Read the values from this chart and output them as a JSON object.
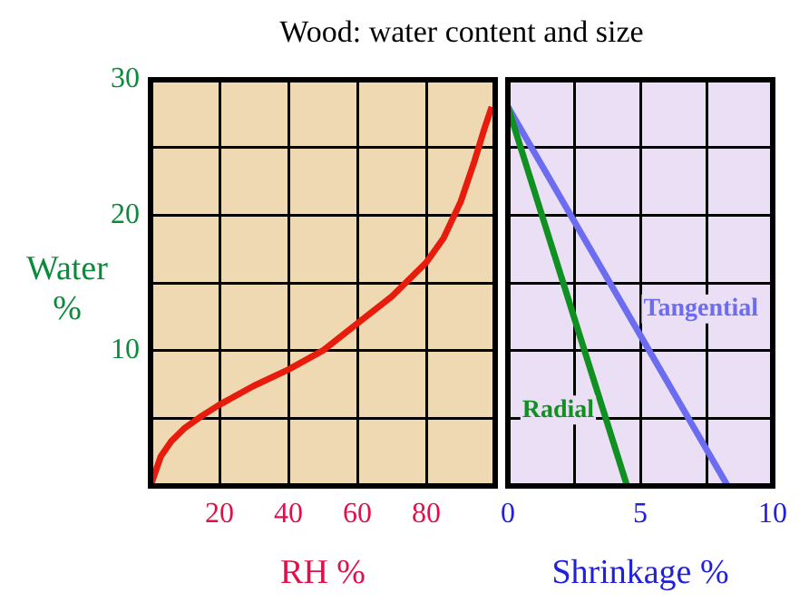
{
  "chart_data": [
    {
      "type": "line",
      "title": "Wood: water content and size",
      "xlabel": "RH %",
      "ylabel": "Water %",
      "xlim": [
        0,
        100
      ],
      "xticks": [
        20,
        40,
        60,
        80
      ],
      "ylim": [
        0,
        30
      ],
      "yticks": [
        {
          "value": 5,
          "label": null
        },
        10,
        {
          "value": 15,
          "label": null
        },
        20,
        {
          "value": 25,
          "label": null
        },
        30
      ],
      "grid": true,
      "legend": false,
      "marker": "none",
      "bands": [
        {
          "axis": "x",
          "from": 0,
          "to": 100,
          "color": "#eed9b3"
        }
      ],
      "series": [
        {
          "color": "#e81c0c",
          "x": [
            0,
            3,
            6,
            10,
            15,
            20,
            30,
            40,
            50,
            60,
            70,
            80,
            85,
            90,
            94,
            97,
            99
          ],
          "values": [
            0,
            2.2,
            3.3,
            4.3,
            5.2,
            6,
            7.4,
            8.6,
            10,
            12,
            14,
            16.5,
            18.3,
            21,
            24,
            26.5,
            28
          ]
        }
      ]
    },
    {
      "type": "line",
      "xlabel": "Shrinkage %",
      "xlim": [
        0,
        10
      ],
      "xticks": [
        0,
        {
          "value": 2.5,
          "label": null
        },
        5,
        {
          "value": 7.5,
          "label": null
        },
        10
      ],
      "ylim": [
        0,
        30
      ],
      "yticks": [
        {
          "value": 5,
          "label": null
        },
        10,
        {
          "value": 15,
          "label": null
        },
        20,
        {
          "value": 25,
          "label": null
        },
        30
      ],
      "tick_labels": "x",
      "grid": true,
      "legend": false,
      "marker": "none",
      "bands": [
        {
          "axis": "x",
          "from": 0,
          "to": 10,
          "color": "#ebdff5"
        }
      ],
      "series": [
        {
          "name": "Radial",
          "color": "#109020",
          "x": [
            0,
            4.5
          ],
          "values": [
            28,
            0
          ]
        },
        {
          "name": "Tangential",
          "color": "#6c6cf0",
          "x": [
            0,
            8.3
          ],
          "values": [
            28,
            0
          ]
        }
      ]
    }
  ]
}
